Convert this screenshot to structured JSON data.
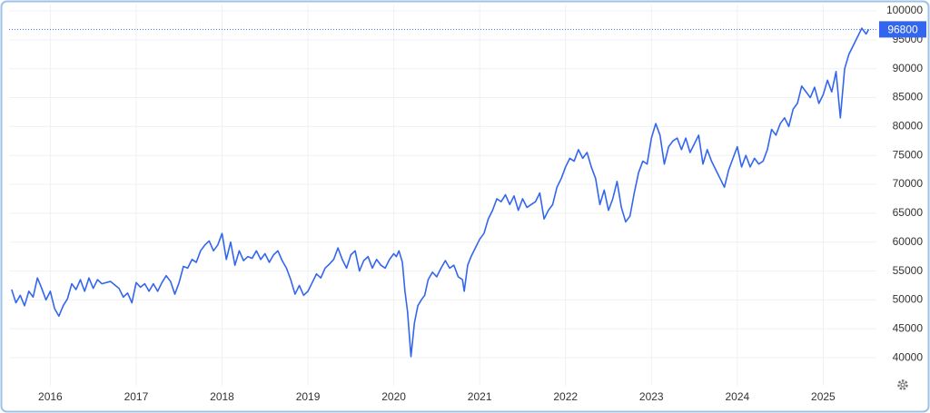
{
  "chart_data": {
    "type": "line",
    "color": "#3366ee",
    "grid": true,
    "xlim": [
      2015.52,
      2025.62
    ],
    "xticks": [
      2016,
      2017,
      2018,
      2019,
      2020,
      2021,
      2022,
      2023,
      2024,
      2025
    ],
    "ylim": [
      35150,
      101100
    ],
    "yticks": [
      40000,
      45000,
      50000,
      55000,
      60000,
      65000,
      70000,
      75000,
      80000,
      85000,
      90000,
      95000,
      100000
    ],
    "x": [
      2015.55,
      2015.6,
      2015.65,
      2015.7,
      2015.75,
      2015.8,
      2015.85,
      2015.9,
      2015.95,
      2016.0,
      2016.05,
      2016.1,
      2016.15,
      2016.2,
      2016.25,
      2016.3,
      2016.35,
      2016.4,
      2016.45,
      2016.5,
      2016.55,
      2016.6,
      2016.7,
      2016.8,
      2016.85,
      2016.9,
      2016.95,
      2017.0,
      2017.05,
      2017.1,
      2017.15,
      2017.2,
      2017.25,
      2017.3,
      2017.35,
      2017.4,
      2017.45,
      2017.5,
      2017.55,
      2017.6,
      2017.65,
      2017.7,
      2017.75,
      2017.8,
      2017.85,
      2017.9,
      2017.95,
      2018.0,
      2018.05,
      2018.1,
      2018.15,
      2018.2,
      2018.25,
      2018.3,
      2018.35,
      2018.4,
      2018.45,
      2018.5,
      2018.55,
      2018.6,
      2018.65,
      2018.7,
      2018.75,
      2018.8,
      2018.85,
      2018.9,
      2018.95,
      2019.0,
      2019.05,
      2019.1,
      2019.15,
      2019.2,
      2019.25,
      2019.3,
      2019.35,
      2019.4,
      2019.45,
      2019.5,
      2019.55,
      2019.6,
      2019.65,
      2019.7,
      2019.75,
      2019.8,
      2019.85,
      2019.9,
      2019.95,
      2020.0,
      2020.03,
      2020.06,
      2020.1,
      2020.13,
      2020.16,
      2020.2,
      2020.24,
      2020.28,
      2020.32,
      2020.36,
      2020.4,
      2020.45,
      2020.5,
      2020.55,
      2020.6,
      2020.65,
      2020.7,
      2020.75,
      2020.8,
      2020.82,
      2020.86,
      2020.9,
      2020.95,
      2021.0,
      2021.05,
      2021.1,
      2021.15,
      2021.2,
      2021.25,
      2021.3,
      2021.35,
      2021.4,
      2021.45,
      2021.5,
      2021.55,
      2021.6,
      2021.65,
      2021.7,
      2021.75,
      2021.8,
      2021.85,
      2021.9,
      2021.95,
      2022.0,
      2022.05,
      2022.1,
      2022.15,
      2022.2,
      2022.25,
      2022.3,
      2022.35,
      2022.4,
      2022.45,
      2022.5,
      2022.55,
      2022.6,
      2022.65,
      2022.7,
      2022.75,
      2022.8,
      2022.85,
      2022.9,
      2022.95,
      2023.0,
      2023.05,
      2023.1,
      2023.15,
      2023.2,
      2023.25,
      2023.3,
      2023.35,
      2023.4,
      2023.45,
      2023.5,
      2023.55,
      2023.6,
      2023.65,
      2023.7,
      2023.75,
      2023.8,
      2023.85,
      2023.9,
      2023.95,
      2024.0,
      2024.05,
      2024.1,
      2024.15,
      2024.2,
      2024.25,
      2024.3,
      2024.35,
      2024.4,
      2024.45,
      2024.5,
      2024.55,
      2024.6,
      2024.65,
      2024.7,
      2024.75,
      2024.8,
      2024.85,
      2024.9,
      2024.95,
      2025.0,
      2025.05,
      2025.1,
      2025.15,
      2025.2,
      2025.25,
      2025.3,
      2025.35,
      2025.4,
      2025.45,
      2025.5,
      2025.53
    ],
    "values": [
      51800,
      49500,
      50800,
      49000,
      51500,
      50500,
      53800,
      52000,
      50000,
      51500,
      48500,
      47200,
      49000,
      50200,
      52800,
      51800,
      53500,
      51500,
      53800,
      52000,
      53500,
      52800,
      53200,
      52000,
      50500,
      51200,
      49500,
      53000,
      52200,
      52800,
      51500,
      52800,
      51500,
      53000,
      54200,
      53200,
      51000,
      53000,
      55800,
      55500,
      57000,
      56500,
      58500,
      59500,
      60200,
      58500,
      59500,
      61500,
      57000,
      60000,
      56000,
      58500,
      56800,
      57500,
      57200,
      58500,
      57000,
      58000,
      56500,
      57800,
      58500,
      56800,
      55500,
      53500,
      51000,
      52500,
      50800,
      51500,
      53000,
      54500,
      53800,
      55500,
      56200,
      57000,
      59000,
      57000,
      55500,
      57800,
      58500,
      55000,
      56800,
      57500,
      55500,
      57000,
      56000,
      55500,
      57000,
      58000,
      57500,
      58500,
      56500,
      51500,
      48000,
      40200,
      46000,
      49000,
      50000,
      50800,
      53500,
      54800,
      54000,
      55500,
      56800,
      55500,
      56000,
      54000,
      53500,
      51500,
      56000,
      57500,
      59000,
      60500,
      61500,
      64000,
      65500,
      67500,
      67000,
      68200,
      66500,
      68000,
      65500,
      67500,
      66000,
      66500,
      67000,
      68500,
      64000,
      65500,
      66500,
      69500,
      71000,
      73000,
      74500,
      74000,
      76000,
      74500,
      75500,
      73000,
      71000,
      66500,
      69000,
      65500,
      67500,
      70500,
      66000,
      63500,
      64500,
      68500,
      72000,
      74000,
      73500,
      78000,
      80500,
      78500,
      73500,
      76500,
      77500,
      78000,
      76000,
      78000,
      75500,
      77000,
      78500,
      73500,
      76000,
      74000,
      72500,
      71000,
      69500,
      72500,
      74500,
      76500,
      73000,
      75000,
      73000,
      74500,
      73500,
      74000,
      76000,
      79500,
      78500,
      80500,
      81500,
      80000,
      83000,
      84000,
      87000,
      86000,
      85000,
      86800,
      84000,
      85500,
      88000,
      86000,
      89500,
      81500,
      90000,
      92500,
      94000,
      95500,
      97000,
      96000,
      96800
    ]
  }
}
